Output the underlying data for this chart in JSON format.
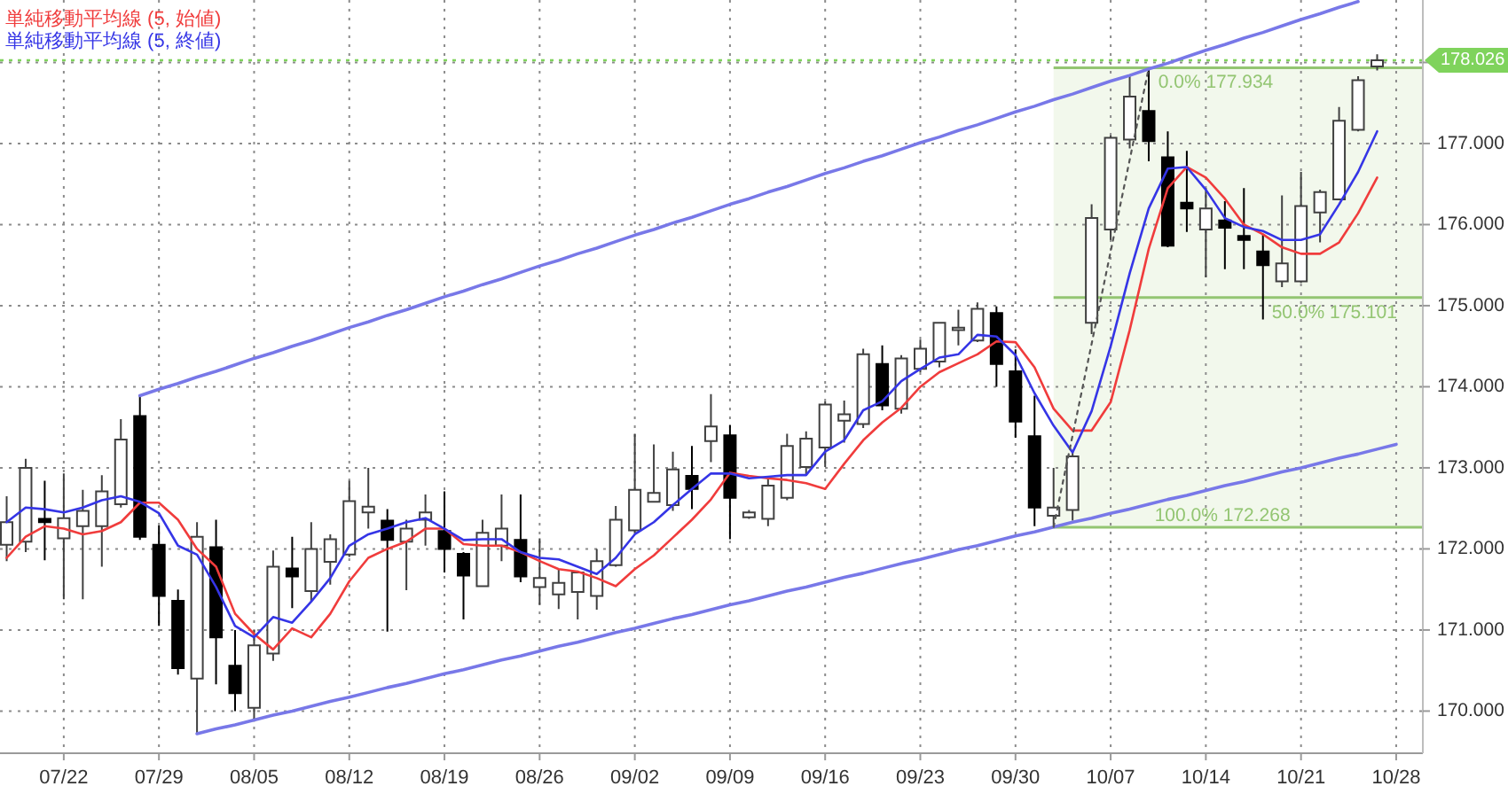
{
  "chart_data": {
    "type": "candlestick",
    "categories": [
      null,
      null,
      null,
      "07/22",
      null,
      null,
      null,
      null,
      "07/29",
      null,
      null,
      null,
      null,
      "08/05",
      null,
      null,
      null,
      null,
      "08/12",
      null,
      null,
      null,
      null,
      "08/19",
      null,
      null,
      null,
      null,
      "08/26",
      null,
      null,
      null,
      null,
      "09/02",
      null,
      null,
      null,
      null,
      "09/09",
      null,
      null,
      null,
      null,
      "09/16",
      null,
      null,
      null,
      null,
      "09/23",
      null,
      null,
      null,
      null,
      "09/30",
      null,
      null,
      null,
      null,
      "10/07",
      null,
      null,
      null,
      null,
      "10/14",
      null,
      null,
      null,
      null,
      "10/21",
      null,
      null,
      null,
      null,
      "10/28"
    ],
    "ohlc": [
      [
        172.05,
        172.65,
        171.85,
        172.33
      ],
      [
        172.09,
        173.11,
        171.96,
        173.0
      ],
      [
        172.37,
        172.84,
        171.86,
        172.33
      ],
      [
        172.13,
        172.93,
        171.38,
        172.38
      ],
      [
        172.28,
        172.73,
        171.38,
        172.47
      ],
      [
        172.28,
        172.91,
        171.78,
        172.71
      ],
      [
        172.55,
        173.6,
        172.51,
        173.35
      ],
      [
        173.64,
        173.89,
        172.11,
        172.15
      ],
      [
        172.05,
        172.29,
        171.05,
        171.42
      ],
      [
        171.36,
        171.5,
        170.45,
        170.53
      ],
      [
        170.4,
        172.33,
        169.72,
        172.15
      ],
      [
        172.02,
        172.36,
        170.33,
        170.91
      ],
      [
        170.56,
        171.0,
        170.0,
        170.22
      ],
      [
        170.04,
        171.0,
        169.87,
        170.81
      ],
      [
        170.71,
        171.98,
        170.62,
        171.78
      ],
      [
        171.76,
        172.15,
        171.27,
        171.66
      ],
      [
        171.48,
        172.33,
        171.35,
        172.0
      ],
      [
        171.84,
        172.18,
        171.56,
        172.12
      ],
      [
        171.93,
        172.84,
        171.9,
        172.59
      ],
      [
        172.45,
        173.0,
        172.25,
        172.52
      ],
      [
        172.35,
        172.49,
        170.98,
        172.11
      ],
      [
        172.09,
        172.36,
        171.49,
        172.25
      ],
      [
        172.36,
        172.67,
        172.04,
        172.45
      ],
      [
        172.22,
        172.71,
        171.71,
        172.0
      ],
      [
        171.94,
        171.96,
        171.13,
        171.67
      ],
      [
        171.54,
        172.36,
        171.53,
        172.2
      ],
      [
        172.04,
        172.67,
        171.85,
        172.25
      ],
      [
        172.11,
        172.67,
        171.59,
        171.66
      ],
      [
        171.53,
        172.13,
        171.31,
        171.64
      ],
      [
        171.44,
        171.75,
        171.26,
        171.58
      ],
      [
        171.47,
        171.73,
        171.13,
        171.71
      ],
      [
        171.42,
        172.0,
        171.25,
        171.85
      ],
      [
        171.8,
        172.53,
        171.78,
        172.36
      ],
      [
        172.23,
        173.42,
        172.2,
        172.73
      ],
      [
        172.58,
        173.29,
        172.57,
        172.69
      ],
      [
        172.54,
        173.2,
        172.47,
        172.98
      ],
      [
        172.9,
        173.27,
        172.49,
        172.74
      ],
      [
        173.33,
        173.91,
        173.07,
        173.51
      ],
      [
        173.4,
        173.53,
        172.12,
        172.63
      ],
      [
        172.39,
        172.48,
        172.37,
        172.45
      ],
      [
        172.37,
        172.87,
        172.28,
        172.78
      ],
      [
        172.63,
        173.42,
        172.6,
        173.27
      ],
      [
        173.01,
        173.45,
        172.91,
        173.36
      ],
      [
        173.25,
        173.82,
        173.01,
        173.78
      ],
      [
        173.58,
        173.83,
        173.31,
        173.66
      ],
      [
        173.54,
        174.47,
        173.49,
        174.4
      ],
      [
        174.28,
        174.51,
        173.71,
        173.77
      ],
      [
        173.73,
        174.39,
        173.67,
        174.35
      ],
      [
        174.22,
        174.58,
        174.18,
        174.47
      ],
      [
        174.31,
        174.8,
        174.24,
        174.79
      ],
      [
        174.7,
        174.95,
        174.51,
        174.73
      ],
      [
        174.57,
        175.04,
        174.55,
        174.96
      ],
      [
        174.91,
        174.99,
        174.0,
        174.28
      ],
      [
        174.19,
        174.46,
        173.37,
        173.57
      ],
      [
        173.39,
        173.89,
        172.28,
        172.51
      ],
      [
        172.41,
        173.0,
        172.268,
        172.51
      ],
      [
        172.48,
        173.2,
        172.35,
        173.14
      ],
      [
        174.79,
        176.25,
        174.65,
        176.08
      ],
      [
        175.94,
        177.1,
        175.81,
        177.07
      ],
      [
        177.05,
        177.85,
        176.94,
        177.58
      ],
      [
        177.4,
        177.934,
        176.78,
        177.03
      ],
      [
        176.83,
        177.15,
        175.72,
        175.74
      ],
      [
        176.27,
        176.91,
        175.91,
        176.2
      ],
      [
        175.94,
        176.45,
        175.35,
        176.2
      ],
      [
        176.05,
        176.29,
        175.45,
        175.96
      ],
      [
        175.86,
        176.45,
        175.45,
        175.81
      ],
      [
        175.67,
        175.88,
        174.83,
        175.5
      ],
      [
        175.3,
        176.36,
        175.23,
        175.52
      ],
      [
        175.3,
        176.65,
        175.28,
        176.23
      ],
      [
        176.15,
        176.43,
        175.78,
        176.4
      ],
      [
        176.31,
        177.45,
        176.3,
        177.28
      ],
      [
        177.17,
        177.83,
        177.15,
        177.78
      ],
      [
        177.95,
        178.1,
        177.9,
        178.026
      ],
      null
    ],
    "series": [
      {
        "name": "単純移動平均線 (5, 始値)",
        "type": "line",
        "color": "#f03c3c",
        "values": [
          171.89,
          172.15,
          172.28,
          172.25,
          172.18,
          172.22,
          172.33,
          172.57,
          172.57,
          172.36,
          172.0,
          171.78,
          171.2,
          170.95,
          170.76,
          171.02,
          170.91,
          171.2,
          171.6,
          171.89,
          172.0,
          172.09,
          172.25,
          172.25,
          172.06,
          172.04,
          172.04,
          171.96,
          171.85,
          171.75,
          171.72,
          171.64,
          171.54,
          171.75,
          171.92,
          172.14,
          172.36,
          172.61,
          172.94,
          172.9,
          172.87,
          172.85,
          172.81,
          172.74,
          173.05,
          173.34,
          173.56,
          173.74,
          174.0,
          174.18,
          174.29,
          174.4,
          174.56,
          174.55,
          174.24,
          173.73,
          173.46,
          173.46,
          173.81,
          174.7,
          175.7,
          176.45,
          176.71,
          176.58,
          176.32,
          176.0,
          175.88,
          175.72,
          175.64,
          175.64,
          175.78,
          176.14,
          176.58,
          null
        ]
      },
      {
        "name": "単純移動平均線 (5, 終値)",
        "type": "line",
        "color": "#3535e6",
        "values": [
          172.33,
          172.51,
          172.49,
          172.45,
          172.51,
          172.6,
          172.65,
          172.58,
          172.44,
          172.04,
          171.93,
          171.53,
          171.05,
          170.91,
          171.16,
          171.09,
          171.35,
          171.64,
          172.04,
          172.18,
          172.25,
          172.33,
          172.38,
          172.25,
          172.11,
          172.12,
          172.12,
          171.96,
          171.89,
          171.87,
          171.78,
          171.69,
          171.89,
          172.18,
          172.33,
          172.54,
          172.74,
          172.93,
          172.93,
          172.87,
          172.89,
          172.91,
          172.91,
          173.2,
          173.34,
          173.71,
          173.82,
          174.07,
          174.22,
          174.36,
          174.4,
          174.64,
          174.62,
          174.39,
          173.92,
          173.52,
          173.19,
          173.7,
          174.5,
          175.4,
          176.2,
          176.69,
          176.71,
          176.43,
          176.08,
          175.97,
          175.92,
          175.81,
          175.81,
          175.88,
          176.25,
          176.65,
          177.15,
          null
        ]
      },
      {
        "type": "line",
        "color": "#7878e8",
        "values": [
          null,
          null,
          null,
          null,
          null,
          null,
          null,
          173.89,
          173.97,
          174.04,
          174.12,
          174.19,
          174.27,
          174.35,
          174.42,
          174.5,
          174.57,
          174.65,
          174.73,
          174.8,
          174.88,
          174.95,
          175.03,
          175.11,
          175.18,
          175.26,
          175.33,
          175.41,
          175.49,
          175.56,
          175.64,
          175.71,
          175.79,
          175.87,
          175.94,
          176.02,
          176.09,
          176.17,
          176.25,
          176.32,
          176.4,
          176.47,
          176.55,
          176.63,
          176.7,
          176.78,
          176.85,
          176.93,
          177.01,
          177.08,
          177.16,
          177.23,
          177.31,
          177.39,
          177.46,
          177.54,
          177.61,
          177.69,
          177.77,
          177.84,
          177.92,
          177.99,
          178.07,
          178.15,
          178.22,
          178.3,
          178.37,
          178.45,
          178.53,
          178.6,
          178.68,
          178.75,
          null,
          null
        ]
      },
      {
        "type": "line",
        "color": "#7878e8",
        "values": [
          null,
          null,
          null,
          null,
          null,
          null,
          null,
          null,
          null,
          null,
          169.72,
          169.78,
          169.83,
          169.89,
          169.95,
          170.0,
          170.06,
          170.12,
          170.17,
          170.23,
          170.29,
          170.34,
          170.4,
          170.46,
          170.51,
          170.57,
          170.63,
          170.68,
          170.74,
          170.8,
          170.85,
          170.91,
          170.97,
          171.02,
          171.08,
          171.14,
          171.19,
          171.25,
          171.31,
          171.36,
          171.42,
          171.48,
          171.53,
          171.59,
          171.65,
          171.7,
          171.76,
          171.82,
          171.87,
          171.93,
          171.99,
          172.04,
          172.1,
          172.16,
          172.21,
          172.27,
          172.33,
          172.38,
          172.44,
          172.49,
          172.55,
          172.61,
          172.66,
          172.72,
          172.78,
          172.83,
          172.89,
          172.95,
          173.0,
          173.06,
          173.12,
          173.17,
          173.23,
          173.29
        ]
      },
      {
        "type": "line",
        "color": "#555555",
        "line_style": "dotted",
        "values": [
          null,
          null,
          null,
          null,
          null,
          null,
          null,
          null,
          null,
          null,
          null,
          null,
          null,
          null,
          null,
          null,
          null,
          null,
          null,
          null,
          null,
          null,
          null,
          null,
          null,
          null,
          null,
          null,
          null,
          null,
          null,
          null,
          null,
          null,
          null,
          null,
          null,
          null,
          null,
          null,
          null,
          null,
          null,
          null,
          null,
          null,
          null,
          null,
          null,
          null,
          null,
          null,
          null,
          null,
          null,
          172.27,
          173.4,
          174.53,
          175.67,
          176.8,
          177.93,
          null,
          null,
          null,
          null,
          null,
          null,
          null,
          null,
          null,
          null,
          null,
          null,
          null
        ]
      }
    ],
    "ylim": [
      169.48,
      178.77
    ],
    "yticks": [
      {
        "value": 170,
        "label": "170.000"
      },
      {
        "value": 171,
        "label": "171.000"
      },
      {
        "value": 172,
        "label": "172.000"
      },
      {
        "value": 173,
        "label": "173.000"
      },
      {
        "value": 174,
        "label": "174.000"
      },
      {
        "value": 175,
        "label": "175.000"
      },
      {
        "value": 176,
        "label": "176.000"
      },
      {
        "value": 177,
        "label": "177.000"
      },
      {
        "value": 178,
        "label": null
      }
    ],
    "grid": true,
    "legend": "top left",
    "bands": [
      {
        "axis": "y",
        "from": 172.268,
        "to": 177.934,
        "color": "#f2f8ec"
      }
    ],
    "ref_lines": [
      {
        "axis": "y",
        "value": 178.026,
        "label": "178.026",
        "color": "#7fd35c",
        "line_style": "dotted"
      },
      {
        "axis": "y",
        "value": 177.934,
        "label": "0.0% 177.934",
        "color": "#93c572"
      },
      {
        "axis": "y",
        "value": 175.101,
        "label": "50.0% 175.101",
        "color": "#93c572"
      },
      {
        "axis": "y",
        "value": 172.268,
        "label": "100.0% 172.268",
        "color": "#93c572"
      }
    ]
  }
}
